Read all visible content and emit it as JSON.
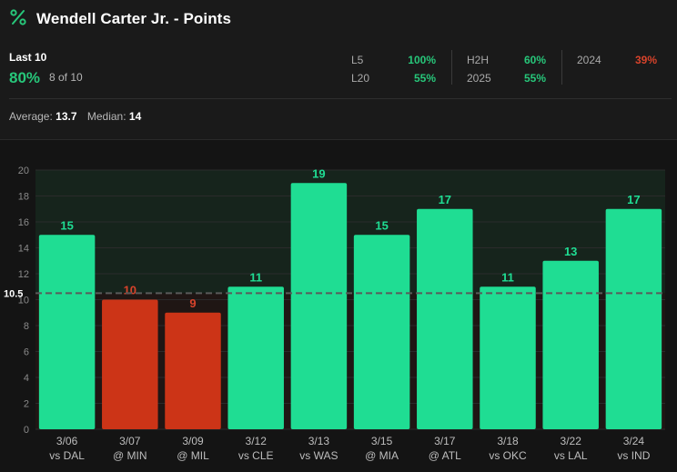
{
  "header": {
    "title": "Wendell Carter Jr. - Points"
  },
  "summary": {
    "last_label": "Last 10",
    "last_pct": "80%",
    "last_count": "8 of 10",
    "splits": [
      {
        "label": "L5",
        "value": "100%",
        "color": "#27c77a"
      },
      {
        "label": "L20",
        "value": "55%",
        "color": "#27c77a"
      },
      {
        "label": "H2H",
        "value": "60%",
        "color": "#27c77a"
      },
      {
        "label": "2025",
        "value": "55%",
        "color": "#27c77a"
      },
      {
        "label": "2024",
        "value": "39%",
        "color": "#d8432b"
      }
    ],
    "average_label": "Average:",
    "average_value": "13.7",
    "median_label": "Median:",
    "median_value": "14"
  },
  "colors": {
    "hit": "#1fdd93",
    "miss": "#cc3417",
    "hit_text": "#1fdd93",
    "miss_text": "#d8432b"
  },
  "chart_data": {
    "type": "bar",
    "title": "Wendell Carter Jr. - Points",
    "line": 10.5,
    "line_label": "10.5",
    "ylim": [
      0,
      20
    ],
    "yticks": [
      0,
      2,
      4,
      6,
      8,
      10,
      12,
      14,
      16,
      18,
      20
    ],
    "categories": [
      {
        "date": "3/06",
        "opp": "vs DAL"
      },
      {
        "date": "3/07",
        "opp": "@ MIN"
      },
      {
        "date": "3/09",
        "opp": "@ MIL"
      },
      {
        "date": "3/12",
        "opp": "vs CLE"
      },
      {
        "date": "3/13",
        "opp": "vs WAS"
      },
      {
        "date": "3/15",
        "opp": "@ MIA"
      },
      {
        "date": "3/17",
        "opp": "@ ATL"
      },
      {
        "date": "3/18",
        "opp": "vs OKC"
      },
      {
        "date": "3/22",
        "opp": "vs LAL"
      },
      {
        "date": "3/24",
        "opp": "vs IND"
      }
    ],
    "values": [
      15,
      10,
      9,
      11,
      19,
      15,
      17,
      11,
      13,
      17
    ]
  }
}
